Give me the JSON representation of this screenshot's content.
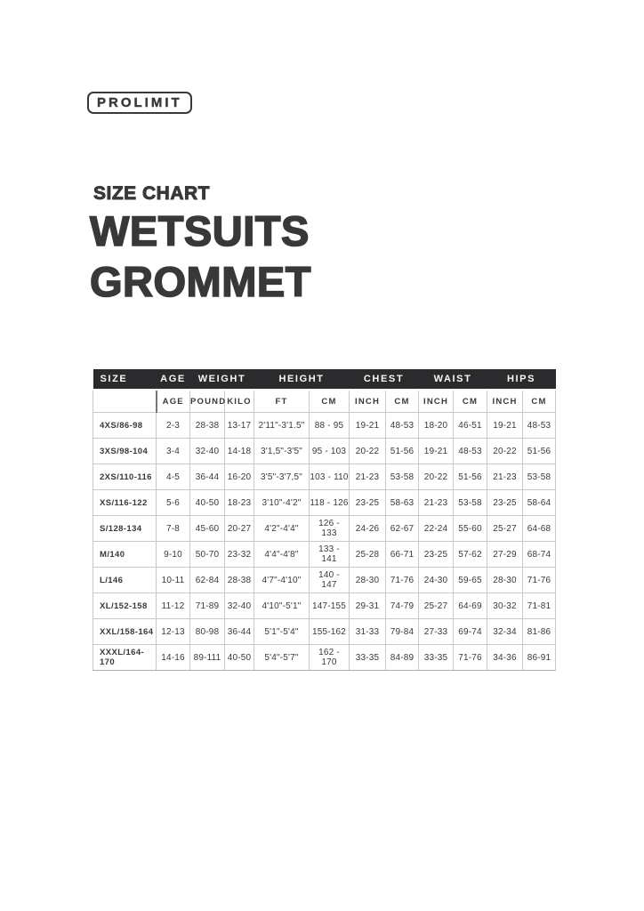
{
  "logo": {
    "text": "PROLIMIT"
  },
  "header": {
    "kicker": "SIZE CHART",
    "title_line1": "WETSUITS",
    "title_line2": "GROMMET"
  },
  "colors": {
    "ink": "#38383a",
    "table_header_bg": "#2b2b2d",
    "table_header_text": "#f7f7f7",
    "table_border": "#c9c9c9",
    "column_divider": "#77787a"
  },
  "table": {
    "type": "table",
    "group_headers": [
      {
        "label": "SIZE",
        "span": 1
      },
      {
        "label": "AGE",
        "span": 1
      },
      {
        "label": "WEIGHT",
        "span": 2
      },
      {
        "label": "HEIGHT",
        "span": 2
      },
      {
        "label": "CHEST",
        "span": 2
      },
      {
        "label": "WAIST",
        "span": 2
      },
      {
        "label": "HIPS",
        "span": 2
      }
    ],
    "sub_headers": [
      "",
      "AGE",
      "POUND",
      "KILO",
      "FT",
      "CM",
      "INCH",
      "CM",
      "INCH",
      "CM",
      "INCH",
      "CM"
    ],
    "rows": [
      [
        "4XS/86-98",
        "2-3",
        "28-38",
        "13-17",
        "2'11\"-3'1.5\"",
        "88 - 95",
        "19-21",
        "48-53",
        "18-20",
        "46-51",
        "19-21",
        "48-53"
      ],
      [
        "3XS/98-104",
        "3-4",
        "32-40",
        "14-18",
        "3'1,5\"-3'5\"",
        "95 - 103",
        "20-22",
        "51-56",
        "19-21",
        "48-53",
        "20-22",
        "51-56"
      ],
      [
        "2XS/110-116",
        "4-5",
        "36-44",
        "16-20",
        "3'5\"-3'7,5\"",
        "103 - 110",
        "21-23",
        "53-58",
        "20-22",
        "51-56",
        "21-23",
        "53-58"
      ],
      [
        "XS/116-122",
        "5-6",
        "40-50",
        "18-23",
        "3'10\"-4'2\"",
        "118 - 126",
        "23-25",
        "58-63",
        "21-23",
        "53-58",
        "23-25",
        "58-64"
      ],
      [
        "S/128-134",
        "7-8",
        "45-60",
        "20-27",
        "4'2\"-4'4\"",
        "126 - 133",
        "24-26",
        "62-67",
        "22-24",
        "55-60",
        "25-27",
        "64-68"
      ],
      [
        "M/140",
        "9-10",
        "50-70",
        "23-32",
        "4'4\"-4'8\"",
        "133 - 141",
        "25-28",
        "66-71",
        "23-25",
        "57-62",
        "27-29",
        "68-74"
      ],
      [
        "L/146",
        "10-11",
        "62-84",
        "28-38",
        "4'7\"-4'10\"",
        "140 - 147",
        "28-30",
        "71-76",
        "24-30",
        "59-65",
        "28-30",
        "71-76"
      ],
      [
        "XL/152-158",
        "11-12",
        "71-89",
        "32-40",
        "4'10\"-5'1\"",
        "147-155",
        "29-31",
        "74-79",
        "25-27",
        "64-69",
        "30-32",
        "71-81"
      ],
      [
        "XXL/158-164",
        "12-13",
        "80-98",
        "36-44",
        "5'1\"-5'4\"",
        "155-162",
        "31-33",
        "79-84",
        "27-33",
        "69-74",
        "32-34",
        "81-86"
      ],
      [
        "XXXL/164-170",
        "14-16",
        "89-111",
        "40-50",
        "5'4\"-5'7\"",
        "162 - 170",
        "33-35",
        "84-89",
        "33-35",
        "71-76",
        "34-36",
        "86-91"
      ]
    ]
  }
}
